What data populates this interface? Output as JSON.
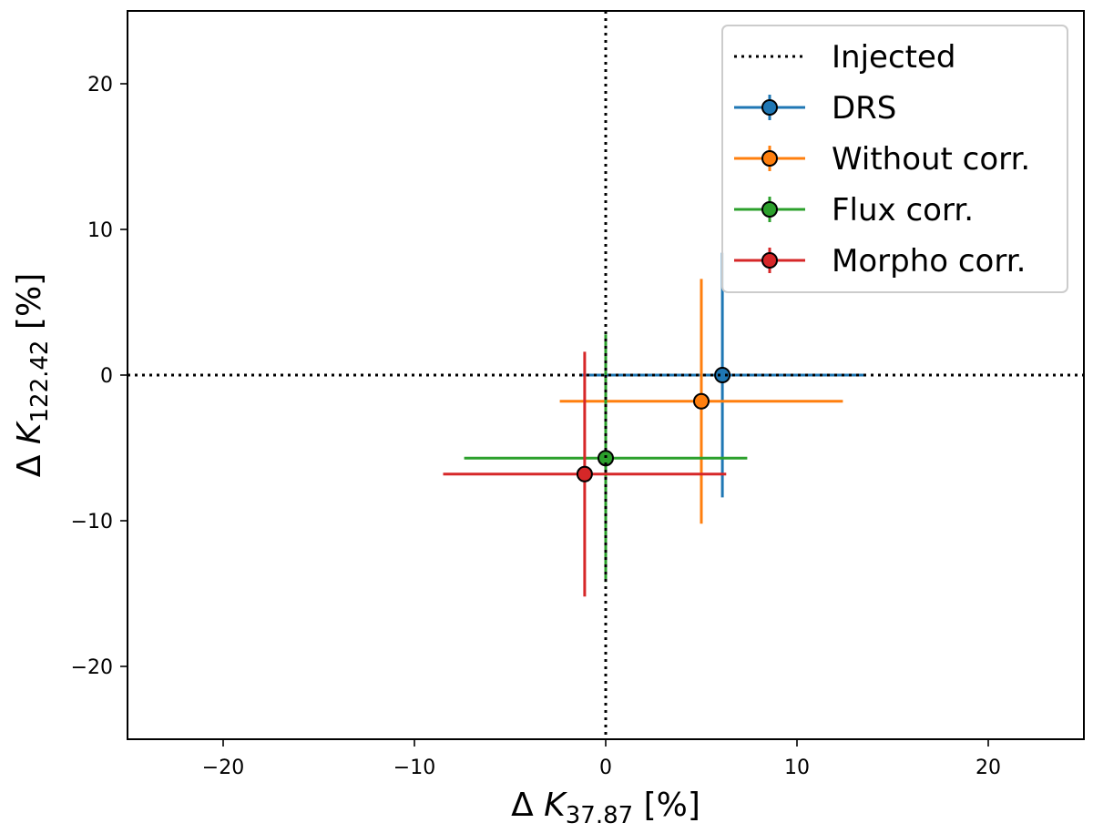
{
  "chart_data": {
    "type": "scatter",
    "xlabel": {
      "prefix": "Δ ",
      "var": "K",
      "sub": "37.87",
      "suffix": " [%]"
    },
    "ylabel": {
      "prefix": "Δ ",
      "var": "K",
      "sub": "122.42",
      "suffix": " [%]"
    },
    "xlim": [
      -25,
      25
    ],
    "ylim": [
      -25,
      25
    ],
    "xticks": [
      -20,
      -10,
      0,
      10,
      20
    ],
    "yticks": [
      -20,
      -10,
      0,
      10,
      20
    ],
    "xtick_labels": [
      "−20",
      "−10",
      "0",
      "10",
      "20"
    ],
    "ytick_labels": [
      "−20",
      "−10",
      "0",
      "10",
      "20"
    ],
    "grid": false,
    "legend_position": "top-right",
    "reference_lines": {
      "name": "Injected",
      "x": 0,
      "y": 0,
      "color": "#000000",
      "style": "dotted"
    },
    "series": [
      {
        "name": "DRS",
        "color": "#1f77b4",
        "x": 6.1,
        "y": 0.0,
        "x_err": 7.4,
        "y_err": 8.4
      },
      {
        "name": "Without corr.",
        "color": "#ff7f0e",
        "x": 5.0,
        "y": -1.8,
        "x_err": 7.4,
        "y_err": 8.4
      },
      {
        "name": "Flux corr.",
        "color": "#2ca02c",
        "x": 0.0,
        "y": -5.7,
        "x_err": 7.4,
        "y_err": 8.5
      },
      {
        "name": "Morpho corr.",
        "color": "#d62728",
        "x": -1.1,
        "y": -6.8,
        "x_err": 7.4,
        "y_err": 8.4
      }
    ]
  }
}
